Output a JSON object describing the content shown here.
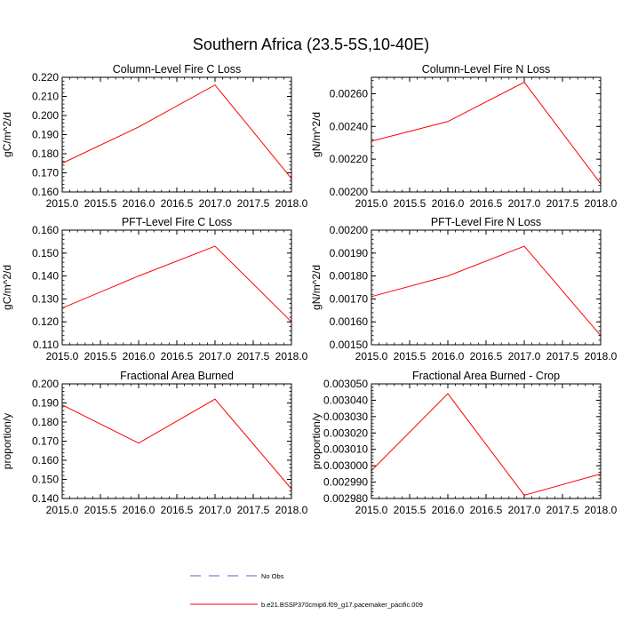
{
  "figure": {
    "title": "Southern Africa (23.5-5S,10-40E)"
  },
  "colors": {
    "model_line": "#ff0000",
    "obs_line": "#6a5acd",
    "axis": "#000000",
    "background": "#ffffff"
  },
  "chart_data": [
    {
      "type": "line",
      "title": "Column-Level Fire C Loss",
      "xlabel": "",
      "ylabel": "gC/m^2/d",
      "xlim": [
        2015.0,
        2018.0
      ],
      "ylim": [
        0.16,
        0.22
      ],
      "xticks": [
        2015.0,
        2015.5,
        2016.0,
        2016.5,
        2017.0,
        2017.5,
        2018.0
      ],
      "xtick_labels": [
        "2015.0",
        "2015.5",
        "2016.0",
        "2016.5",
        "2017.0",
        "2017.5",
        "2018.0"
      ],
      "yticks": [
        0.16,
        0.17,
        0.18,
        0.19,
        0.2,
        0.21,
        0.22
      ],
      "ytick_labels": [
        "0.160",
        "0.170",
        "0.180",
        "0.190",
        "0.200",
        "0.210",
        "0.220"
      ],
      "series": [
        {
          "name": "b.e21.BSSP370cmip6.f09_g17.pacemaker_pacific.009",
          "x": [
            2015.0,
            2016.0,
            2017.0,
            2018.0
          ],
          "values": [
            0.175,
            0.194,
            0.216,
            0.167
          ]
        }
      ]
    },
    {
      "type": "line",
      "title": "Column-Level Fire N Loss",
      "xlabel": "",
      "ylabel": "gN/m^2/d",
      "xlim": [
        2015.0,
        2018.0
      ],
      "ylim": [
        0.002,
        0.0027
      ],
      "xticks": [
        2015.0,
        2015.5,
        2016.0,
        2016.5,
        2017.0,
        2017.5,
        2018.0
      ],
      "xtick_labels": [
        "2015.0",
        "2015.5",
        "2016.0",
        "2016.5",
        "2017.0",
        "2017.5",
        "2018.0"
      ],
      "yticks": [
        0.002,
        0.0022,
        0.0024,
        0.0026
      ],
      "ytick_labels": [
        "0.00200",
        "0.00220",
        "0.00240",
        "0.00260"
      ],
      "series": [
        {
          "name": "b.e21.BSSP370cmip6.f09_g17.pacemaker_pacific.009",
          "x": [
            2015.0,
            2016.0,
            2017.0,
            2018.0
          ],
          "values": [
            0.00231,
            0.00243,
            0.00267,
            0.00205
          ]
        }
      ]
    },
    {
      "type": "line",
      "title": "PFT-Level Fire C Loss",
      "xlabel": "",
      "ylabel": "gC/m^2/d",
      "xlim": [
        2015.0,
        2018.0
      ],
      "ylim": [
        0.11,
        0.16
      ],
      "xticks": [
        2015.0,
        2015.5,
        2016.0,
        2016.5,
        2017.0,
        2017.5,
        2018.0
      ],
      "xtick_labels": [
        "2015.0",
        "2015.5",
        "2016.0",
        "2016.5",
        "2017.0",
        "2017.5",
        "2018.0"
      ],
      "yticks": [
        0.11,
        0.12,
        0.13,
        0.14,
        0.15,
        0.16
      ],
      "ytick_labels": [
        "0.110",
        "0.120",
        "0.130",
        "0.140",
        "0.150",
        "0.160"
      ],
      "series": [
        {
          "name": "b.e21.BSSP370cmip6.f09_g17.pacemaker_pacific.009",
          "x": [
            2015.0,
            2016.0,
            2017.0,
            2018.0
          ],
          "values": [
            0.126,
            0.14,
            0.153,
            0.12
          ]
        }
      ]
    },
    {
      "type": "line",
      "title": "PFT-Level Fire N Loss",
      "xlabel": "",
      "ylabel": "gN/m^2/d",
      "xlim": [
        2015.0,
        2018.0
      ],
      "ylim": [
        0.0015,
        0.002
      ],
      "xticks": [
        2015.0,
        2015.5,
        2016.0,
        2016.5,
        2017.0,
        2017.5,
        2018.0
      ],
      "xtick_labels": [
        "2015.0",
        "2015.5",
        "2016.0",
        "2016.5",
        "2017.0",
        "2017.5",
        "2018.0"
      ],
      "yticks": [
        0.0015,
        0.0016,
        0.0017,
        0.0018,
        0.0019,
        0.002
      ],
      "ytick_labels": [
        "0.00150",
        "0.00160",
        "0.00170",
        "0.00180",
        "0.00190",
        "0.00200"
      ],
      "series": [
        {
          "name": "b.e21.BSSP370cmip6.f09_g17.pacemaker_pacific.009",
          "x": [
            2015.0,
            2016.0,
            2017.0,
            2018.0
          ],
          "values": [
            0.00171,
            0.0018,
            0.00193,
            0.00154
          ]
        }
      ]
    },
    {
      "type": "line",
      "title": "Fractional Area Burned",
      "xlabel": "",
      "ylabel": "proportion/y",
      "xlim": [
        2015.0,
        2018.0
      ],
      "ylim": [
        0.14,
        0.2
      ],
      "xticks": [
        2015.0,
        2015.5,
        2016.0,
        2016.5,
        2017.0,
        2017.5,
        2018.0
      ],
      "xtick_labels": [
        "2015.0",
        "2015.5",
        "2016.0",
        "2016.5",
        "2017.0",
        "2017.5",
        "2018.0"
      ],
      "yticks": [
        0.14,
        0.15,
        0.16,
        0.17,
        0.18,
        0.19,
        0.2
      ],
      "ytick_labels": [
        "0.140",
        "0.150",
        "0.160",
        "0.170",
        "0.180",
        "0.190",
        "0.200"
      ],
      "series": [
        {
          "name": "b.e21.BSSP370cmip6.f09_g17.pacemaker_pacific.009",
          "x": [
            2015.0,
            2016.0,
            2017.0,
            2018.0
          ],
          "values": [
            0.189,
            0.169,
            0.192,
            0.145
          ]
        }
      ]
    },
    {
      "type": "line",
      "title": "Fractional Area Burned - Crop",
      "xlabel": "",
      "ylabel": "proportion/y",
      "xlim": [
        2015.0,
        2018.0
      ],
      "ylim": [
        0.00298,
        0.00305
      ],
      "xticks": [
        2015.0,
        2015.5,
        2016.0,
        2016.5,
        2017.0,
        2017.5,
        2018.0
      ],
      "xtick_labels": [
        "2015.0",
        "2015.5",
        "2016.0",
        "2016.5",
        "2017.0",
        "2017.5",
        "2018.0"
      ],
      "yticks": [
        0.00298,
        0.00299,
        0.003,
        0.00301,
        0.00302,
        0.00303,
        0.00304,
        0.00305
      ],
      "ytick_labels": [
        "0.002980",
        "0.002990",
        "0.003000",
        "0.003010",
        "0.003020",
        "0.003030",
        "0.003040",
        "0.003050"
      ],
      "series": [
        {
          "name": "b.e21.BSSP370cmip6.f09_g17.pacemaker_pacific.009",
          "x": [
            2015.0,
            2016.0,
            2017.0,
            2018.0
          ],
          "values": [
            0.002997,
            0.003044,
            0.002982,
            0.002995
          ]
        }
      ]
    }
  ],
  "legend": {
    "items": [
      {
        "label": "No Obs",
        "style": "dashed",
        "color_key": "obs_line"
      },
      {
        "label": "b.e21.BSSP370cmip6.f09_g17.pacemaker_pacific.009",
        "style": "solid",
        "color_key": "model_line"
      }
    ]
  }
}
